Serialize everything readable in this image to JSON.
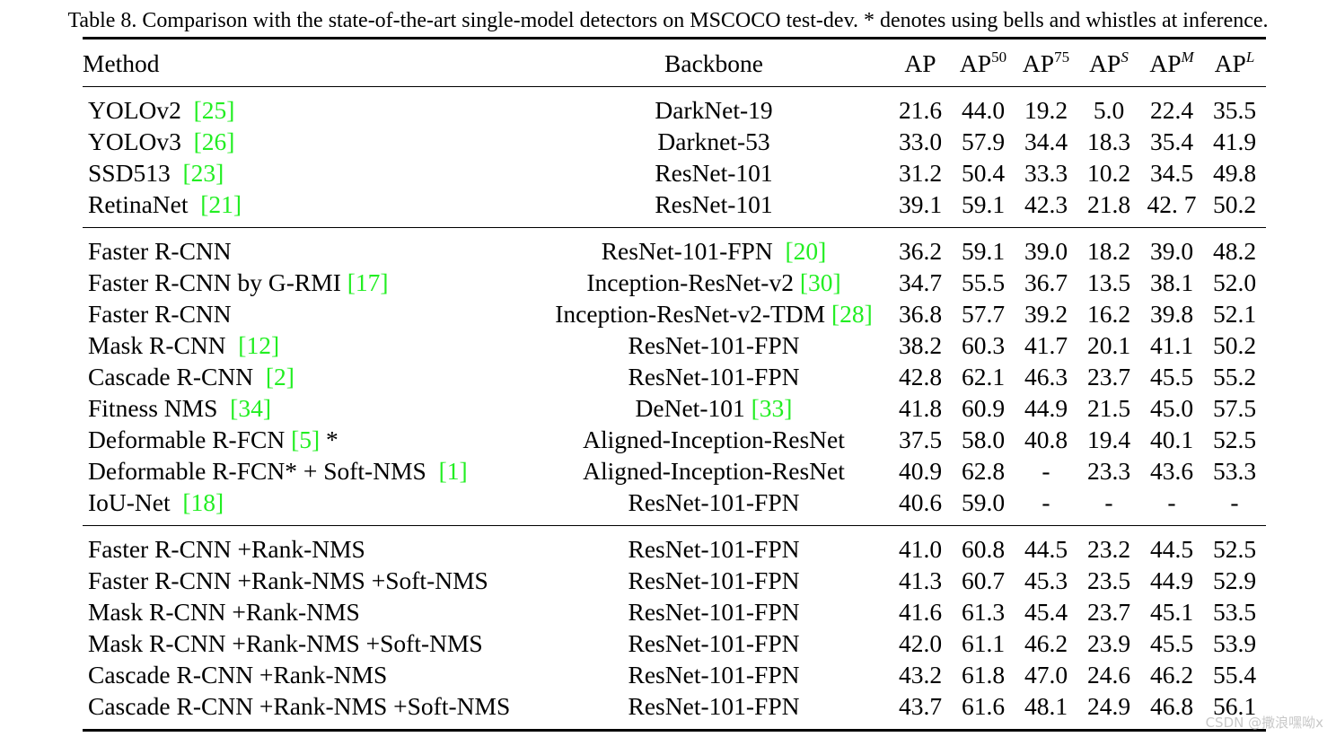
{
  "caption": "Table 8. Comparison with the state-of-the-art single-model detectors on MSCOCO test-dev. * denotes using bells and whistles at inference.",
  "header": {
    "method": "Method",
    "backbone": "Backbone",
    "ap": "AP",
    "ap50_base": "AP",
    "ap50_sup": "50",
    "ap75_base": "AP",
    "ap75_sup": "75",
    "aps_base": "AP",
    "aps_sup": "S",
    "apm_base": "AP",
    "apm_sup": "M",
    "apl_base": "AP",
    "apl_sup": "L"
  },
  "groups": [
    {
      "rows": [
        {
          "method": "YOLOv2  ",
          "method_cite": "[25]",
          "method_suffix": "",
          "backbone": "DarkNet-19",
          "backbone_cite": "",
          "values": [
            "21.6",
            "44.0",
            "19.2",
            "5.0",
            "22.4",
            "35.5"
          ]
        },
        {
          "method": "YOLOv3  ",
          "method_cite": "[26]",
          "method_suffix": "",
          "backbone": "Darknet-53",
          "backbone_cite": "",
          "values": [
            "33.0",
            "57.9",
            "34.4",
            "18.3",
            "35.4",
            "41.9"
          ]
        },
        {
          "method": "SSD513  ",
          "method_cite": "[23]",
          "method_suffix": "",
          "backbone": "ResNet-101",
          "backbone_cite": "",
          "values": [
            "31.2",
            "50.4",
            "33.3",
            "10.2",
            "34.5",
            "49.8"
          ]
        },
        {
          "method": "RetinaNet  ",
          "method_cite": "[21]",
          "method_suffix": "",
          "backbone": "ResNet-101",
          "backbone_cite": "",
          "values": [
            "39.1",
            "59.1",
            "42.3",
            "21.8",
            "42. 7",
            "50.2"
          ]
        }
      ]
    },
    {
      "rows": [
        {
          "method": "Faster R-CNN",
          "method_cite": "",
          "method_suffix": "",
          "backbone": "ResNet-101-FPN  ",
          "backbone_cite": "[20]",
          "values": [
            "36.2",
            "59.1",
            "39.0",
            "18.2",
            "39.0",
            "48.2"
          ]
        },
        {
          "method": "Faster R-CNN by G-RMI ",
          "method_cite": "[17]",
          "method_suffix": "",
          "backbone": "Inception-ResNet-v2 ",
          "backbone_cite": "[30]",
          "values": [
            "34.7",
            "55.5",
            "36.7",
            "13.5",
            "38.1",
            "52.0"
          ]
        },
        {
          "method": "Faster R-CNN",
          "method_cite": "",
          "method_suffix": "",
          "backbone": "Inception-ResNet-v2-TDM ",
          "backbone_cite": "[28]",
          "values": [
            "36.8",
            "57.7",
            "39.2",
            "16.2",
            "39.8",
            "52.1"
          ]
        },
        {
          "method": "Mask R-CNN  ",
          "method_cite": "[12]",
          "method_suffix": "",
          "backbone": "ResNet-101-FPN",
          "backbone_cite": "",
          "values": [
            "38.2",
            "60.3",
            "41.7",
            "20.1",
            "41.1",
            "50.2"
          ]
        },
        {
          "method": "Cascade R-CNN  ",
          "method_cite": "[2]",
          "method_suffix": "",
          "backbone": "ResNet-101-FPN",
          "backbone_cite": "",
          "values": [
            "42.8",
            "62.1",
            "46.3",
            "23.7",
            "45.5",
            "55.2"
          ]
        },
        {
          "method": "Fitness NMS  ",
          "method_cite": "[34]",
          "method_suffix": "",
          "backbone": "DeNet-101 ",
          "backbone_cite": "[33]",
          "values": [
            "41.8",
            "60.9",
            "44.9",
            "21.5",
            "45.0",
            "57.5"
          ]
        },
        {
          "method": "Deformable R-FCN ",
          "method_cite": "[5]",
          "method_suffix": " *",
          "backbone": "Aligned-Inception-ResNet",
          "backbone_cite": "",
          "values": [
            "37.5",
            "58.0",
            "40.8",
            "19.4",
            "40.1",
            "52.5"
          ]
        },
        {
          "method": "Deformable R-FCN* + Soft-NMS  ",
          "method_cite": "[1]",
          "method_suffix": "",
          "backbone": "Aligned-Inception-ResNet",
          "backbone_cite": "",
          "values": [
            "40.9",
            "62.8",
            "-",
            "23.3",
            "43.6",
            "53.3"
          ]
        },
        {
          "method": "IoU-Net  ",
          "method_cite": "[18]",
          "method_suffix": "",
          "backbone": "ResNet-101-FPN",
          "backbone_cite": "",
          "values": [
            "40.6",
            "59.0",
            "-",
            "-",
            "-",
            "-"
          ]
        }
      ]
    },
    {
      "rows": [
        {
          "method": "Faster R-CNN +Rank-NMS",
          "method_cite": "",
          "method_suffix": "",
          "backbone": "ResNet-101-FPN",
          "backbone_cite": "",
          "values": [
            "41.0",
            "60.8",
            "44.5",
            "23.2",
            "44.5",
            "52.5"
          ]
        },
        {
          "method": "Faster R-CNN +Rank-NMS +Soft-NMS",
          "method_cite": "",
          "method_suffix": "",
          "backbone": "ResNet-101-FPN",
          "backbone_cite": "",
          "values": [
            "41.3",
            "60.7",
            "45.3",
            "23.5",
            "44.9",
            "52.9"
          ]
        },
        {
          "method": "Mask R-CNN +Rank-NMS",
          "method_cite": "",
          "method_suffix": "",
          "backbone": "ResNet-101-FPN",
          "backbone_cite": "",
          "values": [
            "41.6",
            "61.3",
            "45.4",
            "23.7",
            "45.1",
            "53.5"
          ]
        },
        {
          "method": "Mask R-CNN +Rank-NMS +Soft-NMS",
          "method_cite": "",
          "method_suffix": "",
          "backbone": "ResNet-101-FPN",
          "backbone_cite": "",
          "values": [
            "42.0",
            "61.1",
            "46.2",
            "23.9",
            "45.5",
            "53.9"
          ]
        },
        {
          "method": "Cascade R-CNN +Rank-NMS",
          "method_cite": "",
          "method_suffix": "",
          "backbone": "ResNet-101-FPN",
          "backbone_cite": "",
          "values": [
            "43.2",
            "61.8",
            "47.0",
            "24.6",
            "46.2",
            "55.4"
          ]
        },
        {
          "method": "Cascade R-CNN +Rank-NMS +Soft-NMS",
          "method_cite": "",
          "method_suffix": "",
          "backbone": "ResNet-101-FPN",
          "backbone_cite": "",
          "values": [
            "43.7",
            "61.6",
            "48.1",
            "24.9",
            "46.8",
            "56.1"
          ]
        }
      ]
    }
  ],
  "watermark": "CSDN @撒浪嘿呦x",
  "colors": {
    "citation": "#22ee22",
    "text": "#000000",
    "watermark": "#c8c8c8"
  }
}
